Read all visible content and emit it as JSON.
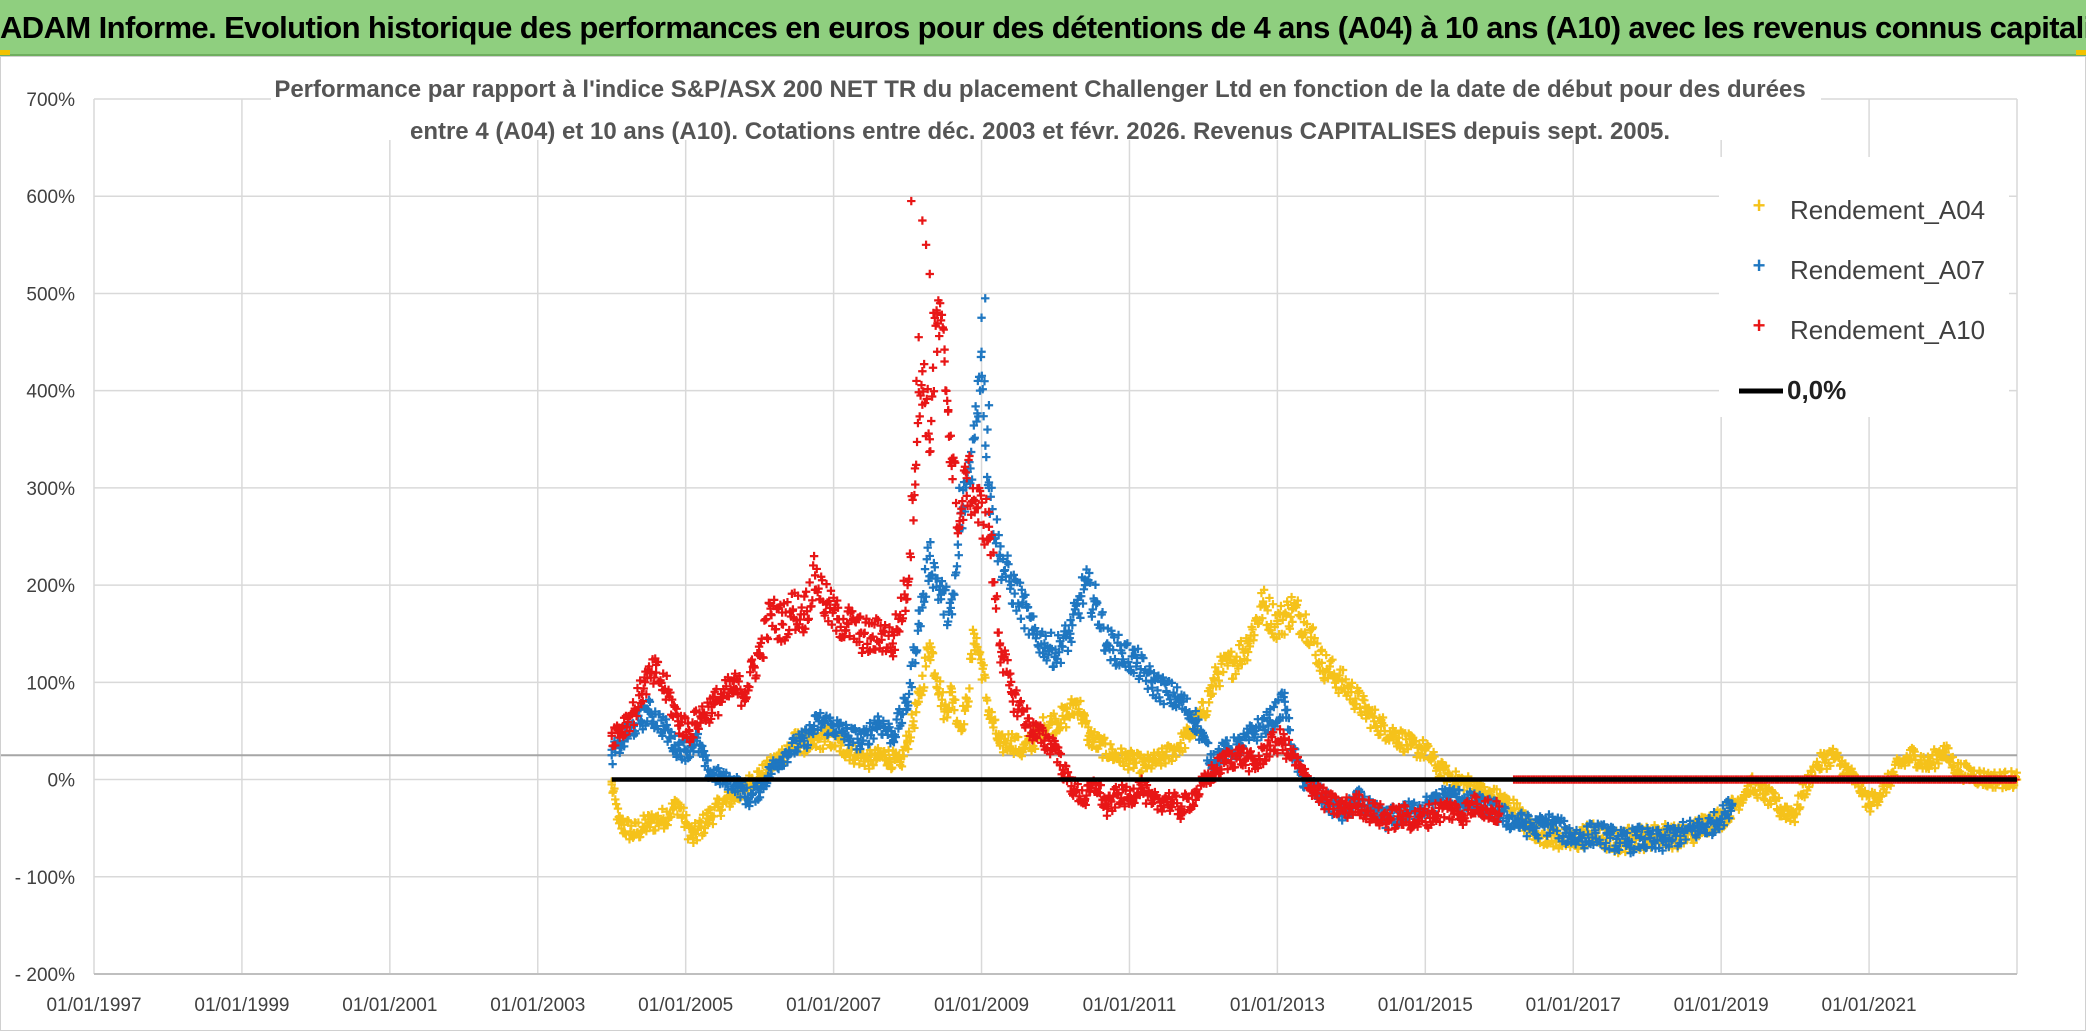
{
  "page": {
    "header_title": "ADAM Informe. Evolution historique des performances en euros pour des détentions de 4 ans (A04) à 10 ans (A10) avec les revenus connus capitalisés"
  },
  "chart_data": {
    "type": "scatter",
    "title_line1": "Performance par rapport à l'indice S&P/ASX 200 NET TR  du placement Challenger Ltd en fonction de la date de début pour des durées",
    "title_line2": "entre 4 (A04) et 10 ans (A10). Cotations entre déc. 2003 et févr. 2026. Revenus CAPITALISES depuis sept. 2005.",
    "x_axis": {
      "min": 1997.0,
      "max": 2023.0,
      "ticks": [
        1997,
        1999,
        2001,
        2003,
        2005,
        2007,
        2009,
        2011,
        2013,
        2015,
        2017,
        2019,
        2021
      ],
      "tick_labels": [
        "01/01/1997",
        "01/01/1999",
        "01/01/2001",
        "01/01/2003",
        "01/01/2005",
        "01/01/2007",
        "01/01/2009",
        "01/01/2011",
        "01/01/2013",
        "01/01/2015",
        "01/01/2017",
        "01/01/2019",
        "01/01/2021"
      ]
    },
    "y_axis": {
      "min": -200,
      "max": 700,
      "ticks": [
        -200,
        -100,
        0,
        100,
        200,
        300,
        400,
        500,
        600,
        700
      ],
      "tick_labels": [
        "- 200%",
        "- 100%",
        "0%",
        "100%",
        "200%",
        "300%",
        "400%",
        "500%",
        "600%",
        "700%"
      ]
    },
    "reference_line_y": 25,
    "zero_line": {
      "name": "0,0%",
      "value": 0,
      "x_start": 2004.0,
      "x_end": 2023.0,
      "color": "#000000"
    },
    "series": [
      {
        "name": "Rendement_A04",
        "color": "#f5c21b",
        "points": [
          [
            2004.0,
            -5
          ],
          [
            2004.1,
            -45
          ],
          [
            2004.3,
            -55
          ],
          [
            2004.5,
            -45
          ],
          [
            2004.7,
            -40
          ],
          [
            2004.9,
            -25
          ],
          [
            2005.0,
            -45
          ],
          [
            2005.1,
            -60
          ],
          [
            2005.3,
            -40
          ],
          [
            2005.5,
            -25
          ],
          [
            2005.7,
            -15
          ],
          [
            2005.9,
            0
          ],
          [
            2006.1,
            10
          ],
          [
            2006.3,
            25
          ],
          [
            2006.5,
            40
          ],
          [
            2006.7,
            35
          ],
          [
            2006.9,
            45
          ],
          [
            2007.1,
            35
          ],
          [
            2007.3,
            25
          ],
          [
            2007.5,
            20
          ],
          [
            2007.7,
            25
          ],
          [
            2007.9,
            15
          ],
          [
            2008.0,
            40
          ],
          [
            2008.15,
            80
          ],
          [
            2008.3,
            140
          ],
          [
            2008.4,
            105
          ],
          [
            2008.5,
            70
          ],
          [
            2008.6,
            90
          ],
          [
            2008.7,
            55
          ],
          [
            2008.8,
            75
          ],
          [
            2008.9,
            150
          ],
          [
            2009.0,
            120
          ],
          [
            2009.1,
            70
          ],
          [
            2009.25,
            35
          ],
          [
            2009.4,
            40
          ],
          [
            2009.55,
            30
          ],
          [
            2009.7,
            40
          ],
          [
            2009.85,
            55
          ],
          [
            2010.0,
            60
          ],
          [
            2010.15,
            65
          ],
          [
            2010.3,
            80
          ],
          [
            2010.45,
            45
          ],
          [
            2010.6,
            35
          ],
          [
            2010.8,
            25
          ],
          [
            2011.0,
            20
          ],
          [
            2011.2,
            15
          ],
          [
            2011.4,
            20
          ],
          [
            2011.6,
            30
          ],
          [
            2011.8,
            45
          ],
          [
            2012.0,
            70
          ],
          [
            2012.2,
            110
          ],
          [
            2012.4,
            120
          ],
          [
            2012.6,
            140
          ],
          [
            2012.8,
            180
          ],
          [
            2013.0,
            160
          ],
          [
            2013.2,
            175
          ],
          [
            2013.4,
            160
          ],
          [
            2013.6,
            120
          ],
          [
            2013.8,
            105
          ],
          [
            2014.0,
            90
          ],
          [
            2014.2,
            70
          ],
          [
            2014.4,
            55
          ],
          [
            2014.6,
            45
          ],
          [
            2014.8,
            35
          ],
          [
            2015.0,
            30
          ],
          [
            2015.2,
            10
          ],
          [
            2015.4,
            0
          ],
          [
            2015.6,
            -5
          ],
          [
            2015.8,
            -15
          ],
          [
            2016.0,
            -20
          ],
          [
            2016.2,
            -30
          ],
          [
            2016.4,
            -50
          ],
          [
            2016.6,
            -55
          ],
          [
            2016.8,
            -60
          ],
          [
            2017.0,
            -65
          ],
          [
            2017.2,
            -55
          ],
          [
            2017.4,
            -60
          ],
          [
            2017.6,
            -65
          ],
          [
            2017.8,
            -60
          ],
          [
            2018.0,
            -60
          ],
          [
            2018.2,
            -55
          ],
          [
            2018.4,
            -60
          ],
          [
            2018.6,
            -55
          ],
          [
            2018.8,
            -45
          ],
          [
            2019.0,
            -40
          ],
          [
            2019.2,
            -25
          ],
          [
            2019.4,
            -5
          ],
          [
            2019.6,
            -15
          ],
          [
            2019.8,
            -30
          ],
          [
            2020.0,
            -35
          ],
          [
            2020.1,
            -15
          ],
          [
            2020.3,
            15
          ],
          [
            2020.5,
            25
          ],
          [
            2020.7,
            10
          ],
          [
            2020.9,
            -10
          ],
          [
            2021.0,
            -25
          ],
          [
            2021.2,
            -10
          ],
          [
            2021.4,
            15
          ],
          [
            2021.6,
            25
          ],
          [
            2021.8,
            15
          ],
          [
            2022.0,
            30
          ],
          [
            2022.2,
            10
          ],
          [
            2022.4,
            5
          ],
          [
            2022.6,
            0
          ],
          [
            2022.8,
            0
          ],
          [
            2023.0,
            0
          ]
        ]
      },
      {
        "name": "Rendement_A07",
        "color": "#1f77c1",
        "points": [
          [
            2004.0,
            25
          ],
          [
            2004.15,
            40
          ],
          [
            2004.3,
            55
          ],
          [
            2004.5,
            70
          ],
          [
            2004.7,
            55
          ],
          [
            2004.85,
            35
          ],
          [
            2005.0,
            30
          ],
          [
            2005.15,
            40
          ],
          [
            2005.3,
            10
          ],
          [
            2005.5,
            0
          ],
          [
            2005.7,
            -5
          ],
          [
            2005.85,
            -20
          ],
          [
            2006.0,
            -10
          ],
          [
            2006.2,
            15
          ],
          [
            2006.4,
            30
          ],
          [
            2006.6,
            40
          ],
          [
            2006.8,
            60
          ],
          [
            2007.0,
            55
          ],
          [
            2007.2,
            45
          ],
          [
            2007.4,
            40
          ],
          [
            2007.6,
            60
          ],
          [
            2007.8,
            45
          ],
          [
            2008.0,
            80
          ],
          [
            2008.15,
            160
          ],
          [
            2008.3,
            230
          ],
          [
            2008.45,
            190
          ],
          [
            2008.6,
            170
          ],
          [
            2008.75,
            280
          ],
          [
            2008.9,
            350
          ],
          [
            2009.0,
            440
          ],
          [
            2009.1,
            300
          ],
          [
            2009.25,
            230
          ],
          [
            2009.4,
            200
          ],
          [
            2009.55,
            180
          ],
          [
            2009.7,
            150
          ],
          [
            2009.85,
            140
          ],
          [
            2010.0,
            130
          ],
          [
            2010.2,
            150
          ],
          [
            2010.4,
            200
          ],
          [
            2010.55,
            180
          ],
          [
            2010.7,
            140
          ],
          [
            2010.9,
            130
          ],
          [
            2011.1,
            120
          ],
          [
            2011.3,
            100
          ],
          [
            2011.5,
            90
          ],
          [
            2011.7,
            80
          ],
          [
            2011.9,
            60
          ],
          [
            2012.1,
            20
          ],
          [
            2012.3,
            30
          ],
          [
            2012.5,
            35
          ],
          [
            2012.7,
            50
          ],
          [
            2012.9,
            60
          ],
          [
            2013.1,
            80
          ],
          [
            2013.2,
            30
          ],
          [
            2013.35,
            0
          ],
          [
            2013.5,
            -10
          ],
          [
            2013.7,
            -25
          ],
          [
            2013.9,
            -35
          ],
          [
            2014.1,
            -20
          ],
          [
            2014.3,
            -35
          ],
          [
            2014.5,
            -40
          ],
          [
            2014.7,
            -35
          ],
          [
            2014.9,
            -30
          ],
          [
            2015.1,
            -25
          ],
          [
            2015.3,
            -15
          ],
          [
            2015.5,
            -20
          ],
          [
            2015.7,
            -25
          ],
          [
            2015.9,
            -30
          ],
          [
            2016.1,
            -40
          ],
          [
            2016.3,
            -45
          ],
          [
            2016.5,
            -50
          ],
          [
            2016.7,
            -45
          ],
          [
            2016.9,
            -55
          ],
          [
            2017.1,
            -60
          ],
          [
            2017.3,
            -55
          ],
          [
            2017.5,
            -60
          ],
          [
            2017.7,
            -65
          ],
          [
            2017.9,
            -60
          ],
          [
            2018.1,
            -65
          ],
          [
            2018.3,
            -60
          ],
          [
            2018.5,
            -55
          ],
          [
            2018.7,
            -50
          ],
          [
            2018.9,
            -45
          ],
          [
            2019.05,
            -35
          ],
          [
            2019.15,
            -25
          ]
        ]
      },
      {
        "name": "Rendement_A10",
        "color": "#e81616",
        "points": [
          [
            2004.0,
            45
          ],
          [
            2004.15,
            55
          ],
          [
            2004.3,
            70
          ],
          [
            2004.45,
            100
          ],
          [
            2004.6,
            110
          ],
          [
            2004.75,
            90
          ],
          [
            2004.9,
            60
          ],
          [
            2005.05,
            50
          ],
          [
            2005.2,
            65
          ],
          [
            2005.35,
            75
          ],
          [
            2005.5,
            85
          ],
          [
            2005.65,
            95
          ],
          [
            2005.8,
            90
          ],
          [
            2006.0,
            130
          ],
          [
            2006.15,
            170
          ],
          [
            2006.3,
            160
          ],
          [
            2006.45,
            175
          ],
          [
            2006.6,
            170
          ],
          [
            2006.75,
            210
          ],
          [
            2006.9,
            180
          ],
          [
            2007.05,
            165
          ],
          [
            2007.2,
            160
          ],
          [
            2007.35,
            150
          ],
          [
            2007.5,
            145
          ],
          [
            2007.65,
            150
          ],
          [
            2007.8,
            140
          ],
          [
            2008.0,
            200
          ],
          [
            2008.1,
            320
          ],
          [
            2008.2,
            420
          ],
          [
            2008.3,
            350
          ],
          [
            2008.4,
            480
          ],
          [
            2008.5,
            430
          ],
          [
            2008.6,
            330
          ],
          [
            2008.7,
            260
          ],
          [
            2008.8,
            310
          ],
          [
            2008.95,
            280
          ],
          [
            2009.1,
            260
          ],
          [
            2009.25,
            140
          ],
          [
            2009.4,
            90
          ],
          [
            2009.55,
            70
          ],
          [
            2009.7,
            50
          ],
          [
            2009.85,
            40
          ],
          [
            2010.0,
            35
          ],
          [
            2010.1,
            10
          ],
          [
            2010.25,
            -10
          ],
          [
            2010.4,
            -20
          ],
          [
            2010.55,
            -5
          ],
          [
            2010.7,
            -30
          ],
          [
            2010.85,
            -15
          ],
          [
            2011.0,
            -20
          ],
          [
            2011.15,
            -5
          ],
          [
            2011.3,
            -25
          ],
          [
            2011.5,
            -20
          ],
          [
            2011.7,
            -30
          ],
          [
            2011.9,
            -15
          ],
          [
            2012.1,
            5
          ],
          [
            2012.3,
            20
          ],
          [
            2012.5,
            25
          ],
          [
            2012.7,
            15
          ],
          [
            2012.9,
            35
          ],
          [
            2013.05,
            40
          ],
          [
            2013.2,
            25
          ],
          [
            2013.35,
            5
          ],
          [
            2013.5,
            -10
          ],
          [
            2013.7,
            -25
          ],
          [
            2013.9,
            -30
          ],
          [
            2014.1,
            -25
          ],
          [
            2014.3,
            -35
          ],
          [
            2014.5,
            -40
          ],
          [
            2014.7,
            -38
          ],
          [
            2014.9,
            -42
          ],
          [
            2015.1,
            -35
          ],
          [
            2015.3,
            -30
          ],
          [
            2015.5,
            -35
          ],
          [
            2015.7,
            -25
          ],
          [
            2015.9,
            -32
          ],
          [
            2016.0,
            -35
          ]
        ]
      }
    ],
    "legend": {
      "position": "top-right",
      "entries": [
        "Rendement_A04",
        "Rendement_A07",
        "Rendement_A10",
        "0,0%"
      ]
    },
    "red_flat_segment": {
      "x_start": 2016.2,
      "x_end": 2023.0,
      "value": 0
    }
  }
}
